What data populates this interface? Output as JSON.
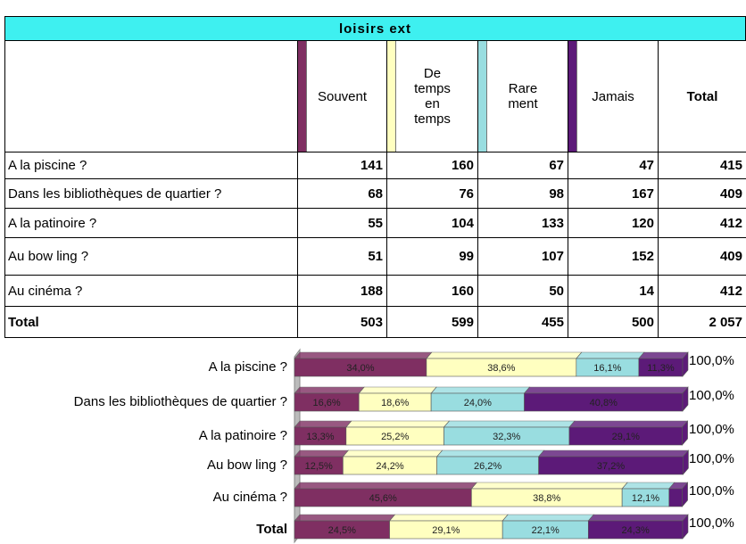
{
  "table": {
    "title": "loisirs ext",
    "header": [
      "",
      "Souvent",
      "De\ntemps\nen\ntemps",
      "Rare\nment",
      "Jamais",
      "Total"
    ],
    "rows": [
      [
        "A la piscine ?",
        141,
        160,
        67,
        47,
        415
      ],
      [
        "Dans les bibliothèques de quartier ?",
        68,
        76,
        98,
        167,
        409
      ],
      [
        "A la patinoire ?",
        55,
        104,
        133,
        120,
        412
      ],
      [
        "Au bow ling ?",
        51,
        99,
        107,
        152,
        409
      ],
      [
        "Au cinéma ?",
        188,
        160,
        50,
        14,
        412
      ],
      [
        "Total",
        503,
        599,
        455,
        500,
        "2 057"
      ]
    ],
    "header_colors": [
      "#7f2f62",
      "#ffffc0",
      "#99dde0",
      "#5c1a78"
    ]
  },
  "chart_data": {
    "type": "stacked_bar_100",
    "categories": [
      "A la piscine ?",
      "Dans les bibliothèques de quartier ?",
      "A la patinoire ?",
      "Au bow ling ?",
      "Au cinéma ?",
      "Total"
    ],
    "xlim": [
      0,
      100
    ],
    "series": [
      {
        "color": "#7f2f62",
        "values": [
          34.0,
          16.6,
          13.3,
          12.5,
          45.6,
          24.5
        ],
        "value_labels": [
          "34,0%",
          "16,6%",
          "13,3%",
          "12,5%",
          "45,6%",
          "24,5%"
        ]
      },
      {
        "color": "#ffffc0",
        "values": [
          38.6,
          18.6,
          25.2,
          24.2,
          38.8,
          29.1
        ],
        "value_labels": [
          "38,6%",
          "18,6%",
          "25,2%",
          "24,2%",
          "38,8%",
          "29,1%"
        ]
      },
      {
        "color": "#99dde0",
        "values": [
          16.1,
          24.0,
          32.3,
          26.2,
          12.1,
          22.1
        ],
        "value_labels": [
          "16,1%",
          "24,0%",
          "32,3%",
          "26,2%",
          "12,1%",
          "22,1%"
        ]
      },
      {
        "color": "#5c1a78",
        "values": [
          11.3,
          40.8,
          29.1,
          37.2,
          3.4,
          24.3
        ],
        "value_labels": [
          "11,3%",
          "40,8%",
          "29,1%",
          "37,2%",
          null,
          "24,3%"
        ]
      }
    ],
    "end_labels": [
      "100,0%",
      "100,0%",
      "100,0%",
      "100,0%",
      "100,0%",
      "100,0%"
    ]
  }
}
